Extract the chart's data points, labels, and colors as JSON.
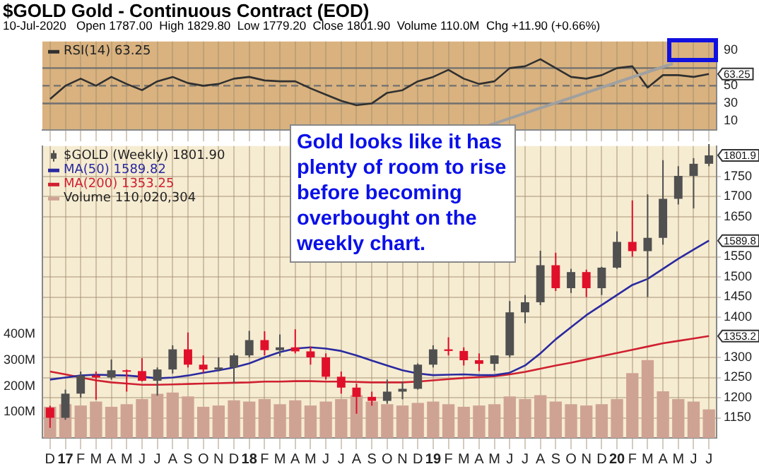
{
  "chart_data": [
    {
      "type": "line",
      "title": "$GOLD Gold - Continuous Contract (EOD)",
      "subtitle": "10-Jul-2020   Open 1787.00  High 1829.80  Low 1779.20  Close 1801.90  Volume 110.0M  Chg +11.90 (+0.66%)",
      "categories": [
        null,
        null,
        null,
        null,
        null,
        null,
        null,
        null,
        null,
        null,
        null,
        null,
        null,
        null,
        null,
        null,
        null,
        null,
        null,
        null,
        null,
        null,
        null,
        null,
        null,
        null,
        null,
        null,
        null,
        null,
        null,
        null,
        null,
        null,
        null,
        null,
        null,
        null,
        null,
        null,
        null,
        null,
        null,
        null
      ],
      "series": [
        {
          "name": "RSI(14) 63.25",
          "color": "#303030",
          "values": [
            35,
            50,
            58,
            50,
            60,
            52,
            45,
            55,
            60,
            53,
            50,
            52,
            58,
            60,
            56,
            55,
            55,
            47,
            40,
            33,
            28,
            30,
            42,
            45,
            55,
            60,
            68,
            58,
            52,
            55,
            70,
            72,
            80,
            70,
            60,
            58,
            62,
            70,
            72,
            48,
            62,
            62,
            60,
            63.25
          ]
        }
      ],
      "ylim": [
        0,
        100
      ],
      "yticks": [
        10,
        30,
        50,
        90
      ],
      "tick_labels": "y",
      "grid": "x",
      "legend": "top left",
      "marker": "none",
      "ref_lines": [
        {
          "axis": "y",
          "value": 70,
          "color": "#707070"
        },
        {
          "axis": "y",
          "value": 50,
          "color": "#707070",
          "line_style": "dashed"
        },
        {
          "axis": "y",
          "value": 30,
          "color": "#707070"
        }
      ],
      "annotations": [
        "63.25"
      ]
    },
    {
      "type": "candlestick",
      "categories": [
        "D",
        "17",
        "F",
        "M",
        "A",
        "M",
        "J",
        "J",
        "A",
        "S",
        "O",
        "N",
        "D",
        "18",
        "F",
        "M",
        "A",
        "M",
        "J",
        "J",
        "A",
        "S",
        "O",
        "N",
        "D",
        "19",
        "F",
        "M",
        "A",
        "M",
        "J",
        "J",
        "A",
        "S",
        "O",
        "N",
        "D",
        "20",
        "F",
        "M",
        "A",
        "M",
        "J",
        "J"
      ],
      "series": [
        {
          "name": "$GOLD (Weekly) 1801.90",
          "ohlc": [
            [
              1175,
              1180,
              1125,
              1150
            ],
            [
              1150,
              1220,
              1145,
              1210
            ],
            [
              1210,
              1265,
              1200,
              1255
            ],
            [
              1255,
              1265,
              1195,
              1250
            ],
            [
              1250,
              1295,
              1245,
              1268
            ],
            [
              1268,
              1270,
              1215,
              1266
            ],
            [
              1266,
              1298,
              1240,
              1242
            ],
            [
              1242,
              1275,
              1205,
              1270
            ],
            [
              1270,
              1330,
              1260,
              1320
            ],
            [
              1320,
              1362,
              1275,
              1282
            ],
            [
              1282,
              1305,
              1262,
              1270
            ],
            [
              1270,
              1300,
              1265,
              1275
            ],
            [
              1275,
              1310,
              1237,
              1305
            ],
            [
              1305,
              1366,
              1300,
              1343
            ],
            [
              1343,
              1365,
              1305,
              1318
            ],
            [
              1318,
              1357,
              1303,
              1325
            ],
            [
              1325,
              1370,
              1310,
              1315
            ],
            [
              1315,
              1327,
              1282,
              1300
            ],
            [
              1300,
              1310,
              1245,
              1252
            ],
            [
              1252,
              1265,
              1210,
              1225
            ],
            [
              1225,
              1235,
              1160,
              1202
            ],
            [
              1202,
              1215,
              1180,
              1192
            ],
            [
              1192,
              1245,
              1185,
              1215
            ],
            [
              1215,
              1240,
              1196,
              1222
            ],
            [
              1222,
              1285,
              1220,
              1282
            ],
            [
              1282,
              1330,
              1275,
              1320
            ],
            [
              1320,
              1350,
              1305,
              1316
            ],
            [
              1316,
              1325,
              1280,
              1293
            ],
            [
              1293,
              1310,
              1266,
              1284
            ],
            [
              1284,
              1305,
              1267,
              1305
            ],
            [
              1305,
              1440,
              1300,
              1412
            ],
            [
              1412,
              1455,
              1385,
              1437
            ],
            [
              1437,
              1565,
              1430,
              1529
            ],
            [
              1529,
              1560,
              1465,
              1472
            ],
            [
              1472,
              1520,
              1460,
              1512
            ],
            [
              1512,
              1518,
              1450,
              1472
            ],
            [
              1472,
              1525,
              1455,
              1523
            ],
            [
              1523,
              1613,
              1520,
              1587
            ],
            [
              1587,
              1690,
              1550,
              1564
            ],
            [
              1564,
              1705,
              1450,
              1597
            ],
            [
              1597,
              1790,
              1580,
              1694
            ],
            [
              1694,
              1775,
              1680,
              1751
            ],
            [
              1751,
              1795,
              1670,
              1781
            ],
            [
              1781,
              1830,
              1775,
              1801.9
            ]
          ],
          "colors": [
            "#e0102a",
            "#505050",
            "#505050",
            "#e0102a",
            "#505050",
            "#e0102a",
            "#e0102a",
            "#505050",
            "#505050",
            "#e0102a",
            "#e0102a",
            "#505050",
            "#505050",
            "#505050",
            "#e0102a",
            "#505050",
            "#e0102a",
            "#e0102a",
            "#e0102a",
            "#e0102a",
            "#e0102a",
            "#e0102a",
            "#505050",
            "#505050",
            "#505050",
            "#505050",
            "#e0102a",
            "#e0102a",
            "#e0102a",
            "#505050",
            "#505050",
            "#505050",
            "#505050",
            "#e0102a",
            "#505050",
            "#e0102a",
            "#505050",
            "#505050",
            "#e0102a",
            "#505050",
            "#505050",
            "#505050",
            "#505050",
            "#505050"
          ]
        },
        {
          "type": "line",
          "name": "MA(50) 1589.82",
          "color": "#2a2aa0",
          "values": [
            1245,
            1250,
            1255,
            1257,
            1256,
            1255,
            1252,
            1248,
            1250,
            1255,
            1262,
            1268,
            1275,
            1285,
            1300,
            1313,
            1322,
            1325,
            1322,
            1316,
            1305,
            1292,
            1280,
            1268,
            1260,
            1256,
            1257,
            1258,
            1256,
            1256,
            1262,
            1280,
            1310,
            1345,
            1375,
            1405,
            1430,
            1455,
            1480,
            1495,
            1520,
            1545,
            1568,
            1590
          ]
        },
        {
          "type": "line",
          "name": "MA(200) 1353.25",
          "color": "#d02030",
          "values": [
            1265,
            1258,
            1250,
            1243,
            1238,
            1235,
            1232,
            1232,
            1233,
            1234,
            1235,
            1236,
            1237,
            1238,
            1240,
            1240,
            1241,
            1241,
            1240,
            1240,
            1239,
            1238,
            1238,
            1238,
            1240,
            1243,
            1246,
            1249,
            1251,
            1253,
            1258,
            1264,
            1272,
            1280,
            1287,
            1295,
            1303,
            1311,
            1319,
            1327,
            1335,
            1341,
            1347,
            1353
          ]
        },
        {
          "type": "bar",
          "name": "Volume 110,020,304",
          "axis": "y2",
          "color": "#cfa394",
          "values": [
            120,
            130,
            125,
            140,
            120,
            130,
            150,
            170,
            175,
            160,
            120,
            125,
            145,
            140,
            150,
            130,
            145,
            125,
            140,
            150,
            165,
            140,
            130,
            125,
            135,
            140,
            130,
            120,
            125,
            130,
            160,
            150,
            165,
            140,
            130,
            125,
            130,
            150,
            250,
            300,
            180,
            150,
            140,
            110
          ]
        }
      ],
      "ylim": [
        1100,
        1825
      ],
      "yticks": [
        1150,
        1200,
        1250,
        1300,
        1400,
        1450,
        1500,
        1550,
        1650,
        1700,
        1750
      ],
      "y2lim": [
        0,
        1125
      ],
      "y2ticks": [
        {
          "value": 100,
          "label": "100M"
        },
        {
          "value": 200,
          "label": "200M"
        },
        {
          "value": 300,
          "label": "300M"
        },
        {
          "value": 400,
          "label": "400M"
        }
      ],
      "grid": true,
      "legend": "top left",
      "marker": "none",
      "annotations": [
        "Gold looks like it has plenty of room to rise before becoming overbought on the weekly chart.",
        "1801.9",
        "1589.8",
        "1353.2"
      ]
    }
  ]
}
